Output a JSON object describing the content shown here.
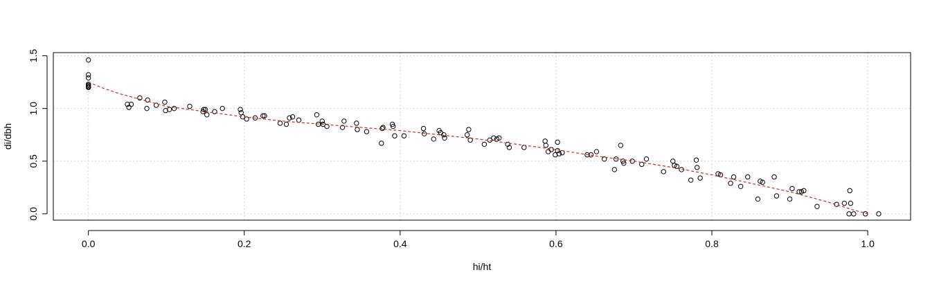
{
  "chart_data": {
    "type": "scatter",
    "title": "",
    "xlabel": "hi/ht",
    "ylabel": "di/dbh",
    "xlim": [
      -0.045,
      1.055
    ],
    "ylim": [
      -0.06,
      1.53
    ],
    "x_ticks": [
      0.0,
      0.2,
      0.4,
      0.6,
      0.8,
      1.0
    ],
    "x_tick_labels": [
      "0.0",
      "0.2",
      "0.4",
      "0.6",
      "0.8",
      "1.0"
    ],
    "y_ticks": [
      0.0,
      0.5,
      1.0,
      1.5
    ],
    "y_tick_labels": [
      "0.0",
      "0.5",
      "1.0",
      "1.5"
    ],
    "grid": true,
    "point_color": "#000000",
    "fit_line_color": "#e02020",
    "series": [
      {
        "kind": "points",
        "x": [
          0.0,
          0.0,
          0.0,
          0.0,
          0.0,
          0.0,
          0.0,
          0.0,
          0.05,
          0.052,
          0.055,
          0.066,
          0.075,
          0.076,
          0.087,
          0.098,
          0.099,
          0.104,
          0.11,
          0.13,
          0.147,
          0.148,
          0.15,
          0.152,
          0.162,
          0.172,
          0.195,
          0.196,
          0.198,
          0.203,
          0.214,
          0.224,
          0.226,
          0.246,
          0.254,
          0.258,
          0.262,
          0.27,
          0.293,
          0.295,
          0.3,
          0.301,
          0.306,
          0.326,
          0.328,
          0.344,
          0.345,
          0.357,
          0.376,
          0.377,
          0.378,
          0.39,
          0.391,
          0.393,
          0.405,
          0.43,
          0.431,
          0.443,
          0.45,
          0.452,
          0.456,
          0.457,
          0.486,
          0.488,
          0.49,
          0.508,
          0.515,
          0.52,
          0.524,
          0.527,
          0.538,
          0.54,
          0.559,
          0.586,
          0.587,
          0.59,
          0.594,
          0.599,
          0.602,
          0.602,
          0.604,
          0.608,
          0.64,
          0.645,
          0.652,
          0.662,
          0.675,
          0.677,
          0.683,
          0.686,
          0.687,
          0.698,
          0.71,
          0.716,
          0.738,
          0.75,
          0.752,
          0.755,
          0.761,
          0.773,
          0.78,
          0.781,
          0.785,
          0.808,
          0.811,
          0.824,
          0.828,
          0.837,
          0.846,
          0.859,
          0.862,
          0.865,
          0.88,
          0.883,
          0.9,
          0.903,
          0.912,
          0.915,
          0.918,
          0.935,
          0.96,
          0.97,
          0.976,
          0.977,
          0.978,
          0.982,
          0.997,
          1.014
        ],
        "y": [
          1.46,
          1.32,
          1.29,
          1.23,
          1.22,
          1.21,
          1.2,
          1.2,
          1.04,
          1.01,
          1.04,
          1.1,
          1.0,
          1.08,
          1.03,
          1.06,
          0.98,
          0.99,
          1.0,
          1.02,
          0.97,
          0.99,
          0.99,
          0.94,
          0.97,
          1.0,
          0.99,
          0.96,
          0.92,
          0.9,
          0.91,
          0.93,
          0.93,
          0.86,
          0.85,
          0.91,
          0.92,
          0.89,
          0.94,
          0.85,
          0.88,
          0.85,
          0.83,
          0.82,
          0.88,
          0.86,
          0.8,
          0.78,
          0.67,
          0.81,
          0.82,
          0.85,
          0.83,
          0.74,
          0.74,
          0.81,
          0.76,
          0.71,
          0.79,
          0.77,
          0.75,
          0.72,
          0.75,
          0.8,
          0.7,
          0.66,
          0.7,
          0.72,
          0.71,
          0.72,
          0.66,
          0.63,
          0.63,
          0.69,
          0.65,
          0.59,
          0.61,
          0.56,
          0.68,
          0.6,
          0.57,
          0.58,
          0.56,
          0.56,
          0.59,
          0.52,
          0.42,
          0.52,
          0.65,
          0.5,
          0.48,
          0.5,
          0.47,
          0.52,
          0.4,
          0.5,
          0.46,
          0.45,
          0.42,
          0.32,
          0.51,
          0.44,
          0.34,
          0.38,
          0.37,
          0.29,
          0.35,
          0.26,
          0.35,
          0.14,
          0.31,
          0.3,
          0.35,
          0.17,
          0.14,
          0.24,
          0.21,
          0.21,
          0.22,
          0.07,
          0.09,
          0.1,
          0.0,
          0.22,
          0.1,
          0.0,
          0.0,
          0.0
        ]
      },
      {
        "kind": "fit-line",
        "x": [
          0.0,
          0.02,
          0.04,
          0.06,
          0.08,
          0.1,
          0.15,
          0.2,
          0.25,
          0.3,
          0.35,
          0.4,
          0.45,
          0.5,
          0.55,
          0.6,
          0.65,
          0.7,
          0.75,
          0.8,
          0.85,
          0.9,
          0.95,
          0.98,
          1.0
        ],
        "y": [
          1.25,
          1.19,
          1.14,
          1.1,
          1.06,
          1.02,
          0.97,
          0.92,
          0.88,
          0.85,
          0.82,
          0.79,
          0.75,
          0.71,
          0.66,
          0.61,
          0.55,
          0.5,
          0.44,
          0.37,
          0.29,
          0.21,
          0.11,
          0.04,
          0.0
        ]
      }
    ]
  }
}
